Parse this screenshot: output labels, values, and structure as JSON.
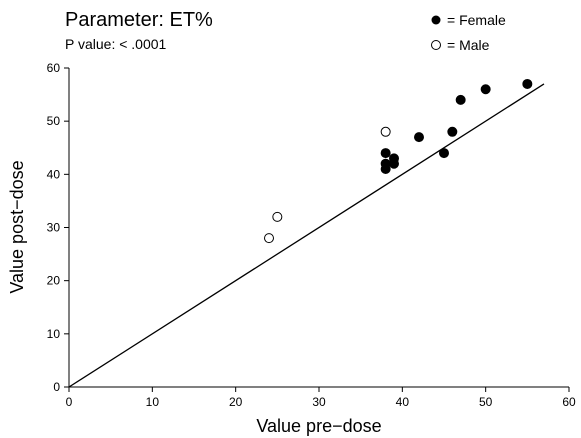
{
  "chart_data": {
    "type": "scatter",
    "title": "Parameter:  ET%",
    "subtitle": "P value:  < .0001",
    "xlabel": "Value pre−dose",
    "ylabel": "Value post−dose",
    "xlim": [
      0,
      60
    ],
    "ylim": [
      0,
      60
    ],
    "xticks": [
      "0",
      "10",
      "20",
      "30",
      "40",
      "50",
      "60"
    ],
    "yticks": [
      "0",
      "10",
      "20",
      "30",
      "40",
      "50",
      "60"
    ],
    "grid": false,
    "legend_position": "top-right",
    "reference_line": {
      "x": [
        0,
        57
      ],
      "y": [
        0,
        57
      ]
    },
    "series": [
      {
        "name": "= Female",
        "marker": "filled-circle",
        "color": "#000000",
        "points": [
          {
            "x": 38,
            "y": 44
          },
          {
            "x": 38,
            "y": 42
          },
          {
            "x": 38,
            "y": 41
          },
          {
            "x": 39,
            "y": 43
          },
          {
            "x": 39,
            "y": 42
          },
          {
            "x": 42,
            "y": 47
          },
          {
            "x": 45,
            "y": 44
          },
          {
            "x": 46,
            "y": 48
          },
          {
            "x": 47,
            "y": 54
          },
          {
            "x": 50,
            "y": 56
          },
          {
            "x": 55,
            "y": 57
          }
        ]
      },
      {
        "name": "= Male",
        "marker": "open-circle",
        "color": "#000000",
        "points": [
          {
            "x": 24,
            "y": 28
          },
          {
            "x": 25,
            "y": 32
          },
          {
            "x": 38,
            "y": 48
          }
        ]
      }
    ]
  }
}
